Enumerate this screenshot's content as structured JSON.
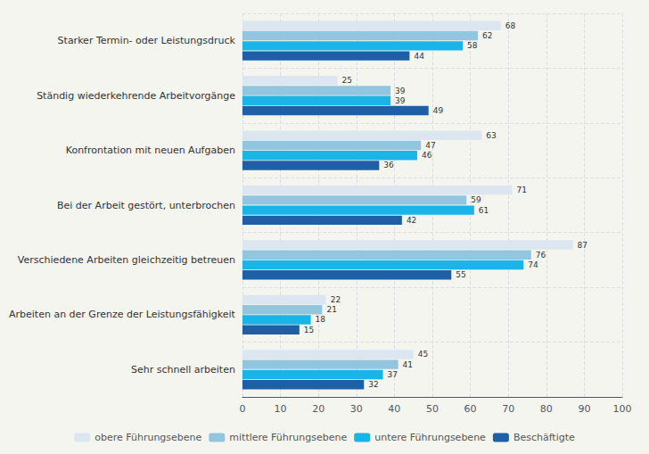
{
  "chart_data": {
    "type": "bar",
    "orientation": "horizontal",
    "categories": [
      "Starker Termin- oder Leistungsdruck",
      "Ständig wiederkehrende Arbeitvorgänge",
      "Konfrontation mit neuen Aufgaben",
      "Bei der Arbeit gestört, unterbrochen",
      "Verschiedene Arbeiten gleichzeitig betreuen",
      "Arbeiten an der Grenze der Leistungsfähigkeit",
      "Sehr schnell arbeiten"
    ],
    "series": [
      {
        "name": "obere Führungsebene",
        "color": "#dce6f0",
        "values": [
          68,
          25,
          63,
          71,
          87,
          22,
          45
        ]
      },
      {
        "name": "mittlere Führungsebene",
        "color": "#92c5de",
        "values": [
          62,
          39,
          47,
          59,
          76,
          21,
          41
        ]
      },
      {
        "name": "untere Führungsebene",
        "color": "#1bb4e8",
        "values": [
          58,
          39,
          46,
          61,
          74,
          18,
          37
        ]
      },
      {
        "name": "Beschäftigte",
        "color": "#1f5fa6",
        "values": [
          44,
          49,
          36,
          42,
          55,
          15,
          32
        ]
      }
    ],
    "xlim": [
      0,
      100
    ],
    "xticks": [
      0,
      10,
      20,
      30,
      40,
      50,
      60,
      70,
      80,
      90,
      100
    ],
    "grid": true,
    "legend": "bottom",
    "data_labels": true
  }
}
